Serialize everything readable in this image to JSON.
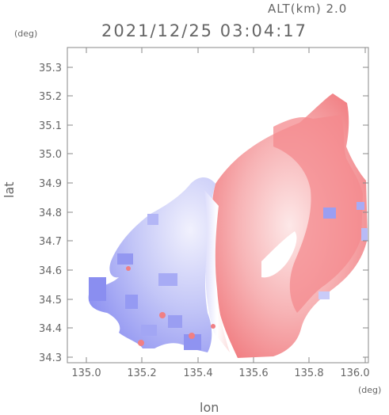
{
  "header": {
    "altitude_label": "ALT(km) 2.0",
    "datetime": "2021/12/25 03:04:17"
  },
  "axes": {
    "lat_unit": "(deg)",
    "lon_unit": "(deg)",
    "lat_label": "lat",
    "lon_label": "lon",
    "lat_ticks": [
      "35.3",
      "35.2",
      "35.1",
      "35.0",
      "34.9",
      "34.8",
      "34.7",
      "34.6",
      "34.5",
      "34.4",
      "34.3"
    ],
    "lon_ticks": [
      "135.0",
      "135.2",
      "135.4",
      "135.6",
      "135.8",
      "136.0"
    ]
  },
  "colors": {
    "approaching": "#7f84f0",
    "receding": "#f07f84",
    "neutral": "#ffffff",
    "frame": "#888888"
  }
}
